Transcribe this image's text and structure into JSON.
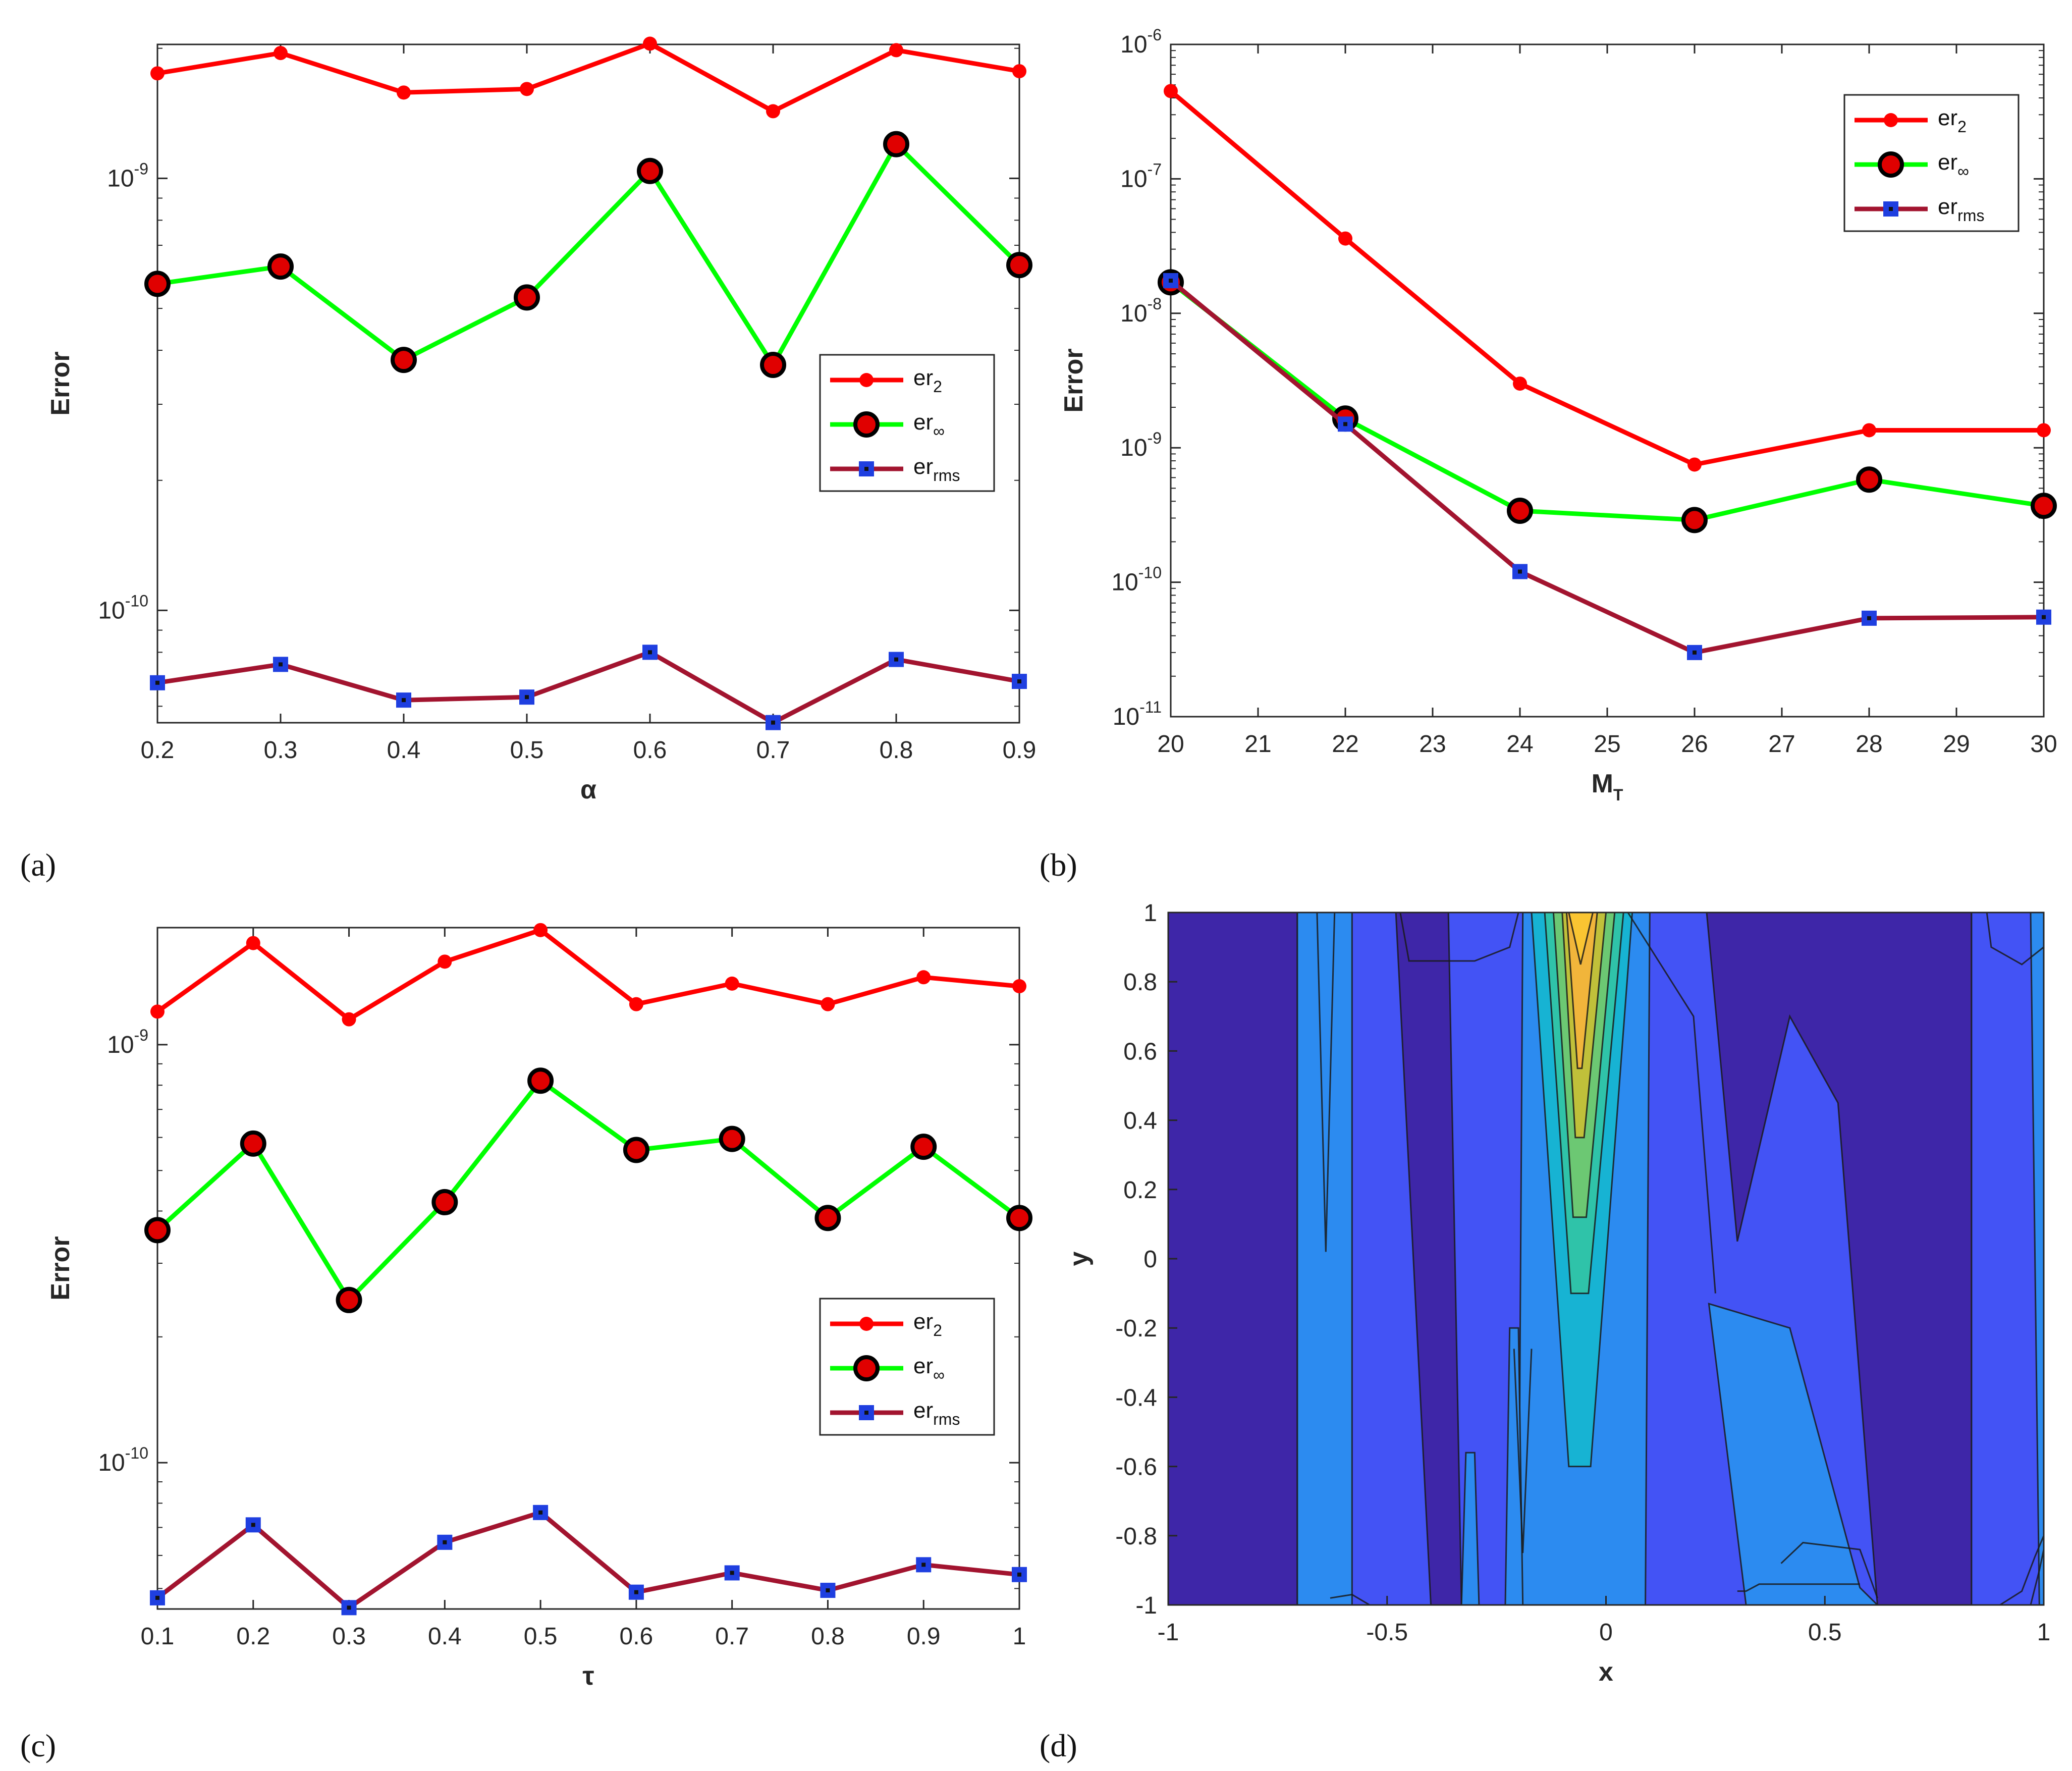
{
  "colors": {
    "er2": "#ff0000",
    "erinf": "#00ff00",
    "errms": "#a2142f",
    "marker_red": "#e00000",
    "marker_blue": "#1f3fe0"
  },
  "chart_data": [
    {
      "id": "a",
      "panel_label": "(a)",
      "type": "line",
      "yscale": "log",
      "xlabel": "α",
      "ylabel": "Error",
      "xlim": [
        0.2,
        0.9
      ],
      "ylim_exp": [
        -10.26,
        -8.69
      ],
      "xticks": [
        0.2,
        0.3,
        0.4,
        0.5,
        0.6,
        0.7,
        0.8,
        0.9
      ],
      "xtick_labels": [
        "0.2",
        "0.3",
        "0.4",
        "0.5",
        "0.6",
        "0.7",
        "0.8",
        "0.9"
      ],
      "ytick_exps": [
        -10,
        -9
      ],
      "ytick_bases": [
        "10",
        "10"
      ],
      "ytick_sups": [
        "-10",
        "-9"
      ],
      "x": [
        0.2,
        0.3,
        0.4,
        0.5,
        0.6,
        0.7,
        0.8,
        0.9
      ],
      "series": [
        {
          "key": "er2",
          "name": "er",
          "sub": "2",
          "values": [
            1.75e-09,
            1.95e-09,
            1.58e-09,
            1.61e-09,
            2.05e-09,
            1.43e-09,
            1.98e-09,
            1.77e-09
          ]
        },
        {
          "key": "erinf",
          "name": "er",
          "sub": "∞",
          "values": [
            5.7e-10,
            6.25e-10,
            3.8e-10,
            5.3e-10,
            1.04e-09,
            3.7e-10,
            1.2e-09,
            6.3e-10
          ]
        },
        {
          "key": "errms",
          "name": "er",
          "sub": "rms",
          "values": [
            6.8e-11,
            7.5e-11,
            6.2e-11,
            6.3e-11,
            8e-11,
            5.5e-11,
            7.7e-11,
            6.85e-11
          ]
        }
      ],
      "legend": {
        "loc": "right"
      }
    },
    {
      "id": "b",
      "panel_label": "(b)",
      "type": "line",
      "yscale": "log",
      "xlabel": "M",
      "xlabel_sub": "T",
      "ylabel": "Error",
      "xlim": [
        20,
        30
      ],
      "ylim_exp": [
        -11,
        -6
      ],
      "xticks": [
        20,
        21,
        22,
        23,
        24,
        25,
        26,
        27,
        28,
        29,
        30
      ],
      "xtick_labels": [
        "20",
        "21",
        "22",
        "23",
        "24",
        "25",
        "26",
        "27",
        "28",
        "29",
        "30"
      ],
      "ytick_exps": [
        -11,
        -10,
        -9,
        -8,
        -7,
        -6
      ],
      "ytick_bases": [
        "10",
        "10",
        "10",
        "10",
        "10",
        "10"
      ],
      "ytick_sups": [
        "-11",
        "-10",
        "-9",
        "-8",
        "-7",
        "-6"
      ],
      "x": [
        20,
        22,
        24,
        26,
        28,
        30
      ],
      "series": [
        {
          "key": "er2",
          "name": "er",
          "sub": "2",
          "values": [
            4.5e-07,
            3.6e-08,
            3e-09,
            7.5e-10,
            1.35e-09,
            1.35e-09
          ]
        },
        {
          "key": "erinf",
          "name": "er",
          "sub": "∞",
          "values": [
            1.7e-08,
            1.65e-09,
            3.4e-10,
            2.9e-10,
            5.8e-10,
            3.7e-10
          ]
        },
        {
          "key": "errms",
          "name": "er",
          "sub": "rms",
          "values": [
            1.75e-08,
            1.5e-09,
            1.2e-10,
            3e-11,
            5.4e-11,
            5.5e-11
          ]
        }
      ],
      "legend": {
        "loc": "top-right"
      }
    },
    {
      "id": "c",
      "panel_label": "(c)",
      "type": "line",
      "yscale": "log",
      "xlabel": "τ",
      "ylabel": "Error",
      "xlim": [
        0.1,
        1
      ],
      "ylim_exp": [
        -10.35,
        -8.72
      ],
      "xticks": [
        0.1,
        0.2,
        0.3,
        0.4,
        0.5,
        0.6,
        0.7,
        0.8,
        0.9,
        1
      ],
      "xtick_labels": [
        "0.1",
        "0.2",
        "0.3",
        "0.4",
        "0.5",
        "0.6",
        "0.7",
        "0.8",
        "0.9",
        "1"
      ],
      "ytick_exps": [
        -10,
        -9
      ],
      "ytick_bases": [
        "10",
        "10"
      ],
      "ytick_sups": [
        "-10",
        "-9"
      ],
      "x": [
        0.1,
        0.2,
        0.3,
        0.4,
        0.5,
        0.6,
        0.7,
        0.8,
        0.9,
        1.0
      ],
      "series": [
        {
          "key": "er2",
          "name": "er",
          "sub": "2",
          "values": [
            1.2e-09,
            1.75e-09,
            1.15e-09,
            1.58e-09,
            1.88e-09,
            1.25e-09,
            1.4e-09,
            1.25e-09,
            1.45e-09,
            1.38e-09
          ]
        },
        {
          "key": "erinf",
          "name": "er",
          "sub": "∞",
          "values": [
            3.6e-10,
            5.8e-10,
            2.45e-10,
            4.2e-10,
            8.2e-10,
            5.6e-10,
            5.95e-10,
            3.85e-10,
            5.7e-10,
            3.85e-10
          ]
        },
        {
          "key": "errms",
          "name": "er",
          "sub": "rms",
          "values": [
            4.75e-11,
            7.1e-11,
            4.5e-11,
            6.45e-11,
            7.6e-11,
            4.9e-11,
            5.45e-11,
            4.95e-11,
            5.7e-11,
            5.4e-11
          ]
        }
      ],
      "legend": {
        "loc": "right"
      }
    },
    {
      "id": "d",
      "panel_label": "(d)",
      "type": "heatmap",
      "subtype": "filled-contour",
      "xlabel": "x",
      "ylabel": "y",
      "xlim": [
        -1,
        1
      ],
      "ylim": [
        -1,
        1
      ],
      "xticks": [
        -1,
        -0.5,
        0,
        0.5,
        1
      ],
      "xtick_labels": [
        "-1",
        "-0.5",
        "0",
        "0.5",
        "1"
      ],
      "yticks": [
        -1,
        -0.8,
        -0.6,
        -0.4,
        -0.2,
        0,
        0.2,
        0.4,
        0.6,
        0.8,
        1
      ],
      "ytick_labels": [
        "-1",
        "-0.8",
        "-0.6",
        "-0.4",
        "-0.2",
        "0",
        "0.2",
        "0.4",
        "0.6",
        "0.8",
        "1"
      ],
      "level_colors": [
        "#3e26a8",
        "#4353f5",
        "#2c8bf0",
        "#17b3d3",
        "#2fc3a9",
        "#6cc873",
        "#c0c03a",
        "#f1b53b",
        "#fac532"
      ]
    }
  ]
}
